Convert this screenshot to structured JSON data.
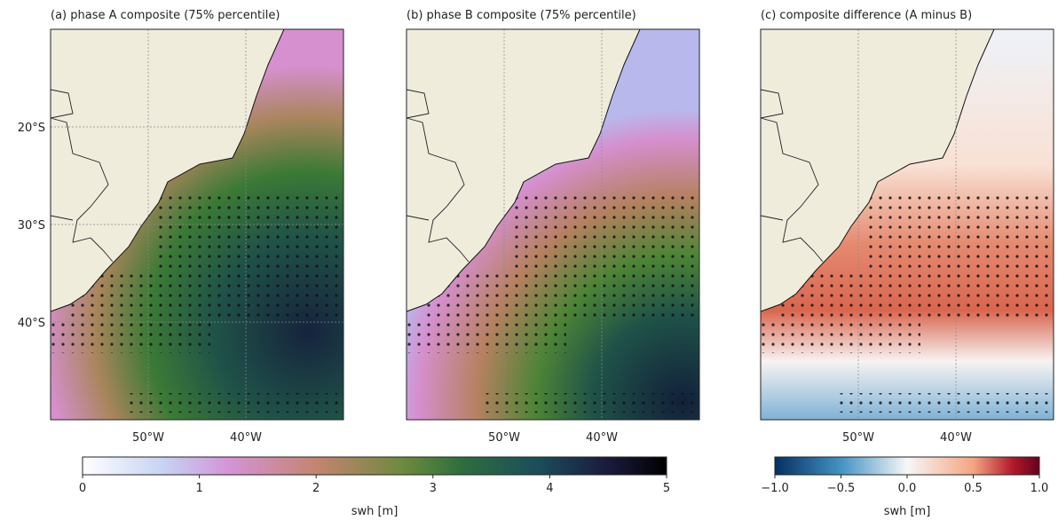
{
  "panels": [
    {
      "title": "(a) phase A composite (75% percentile)",
      "xlim": [
        -60,
        -30
      ],
      "ylim": [
        -50,
        -10
      ],
      "xticks": [
        {
          "value": -50,
          "label": "50°W"
        },
        {
          "value": -40,
          "label": "40°W"
        }
      ],
      "yticks": [
        {
          "value": -20,
          "label": "20°S"
        },
        {
          "value": -30,
          "label": "30°S"
        },
        {
          "value": -40,
          "label": "40°S"
        }
      ]
    },
    {
      "title": "(b) phase B composite (75% percentile)",
      "xlim": [
        -60,
        -30
      ],
      "ylim": [
        -50,
        -10
      ],
      "xticks": [
        {
          "value": -50,
          "label": "50°W"
        },
        {
          "value": -40,
          "label": "40°W"
        }
      ]
    },
    {
      "title": "(c) composite difference (A minus B)",
      "xlim": [
        -60,
        -30
      ],
      "ylim": [
        -50,
        -10
      ],
      "xticks": [
        {
          "value": -50,
          "label": "50°W"
        },
        {
          "value": -40,
          "label": "40°W"
        }
      ]
    }
  ],
  "colorbars": [
    {
      "label": "swh [m]",
      "lim": [
        0,
        5
      ],
      "ticks": [
        0,
        1,
        2,
        3,
        4,
        5
      ]
    },
    {
      "label": "swh [m]",
      "lim": [
        -1,
        1
      ],
      "ticks": [
        {
          "value": -1,
          "label": "−1.0"
        },
        {
          "value": -0.5,
          "label": "−0.5"
        },
        {
          "value": 0,
          "label": "0.0"
        },
        0.5,
        {
          "value": 1,
          "label": "1.0"
        }
      ]
    }
  ]
}
